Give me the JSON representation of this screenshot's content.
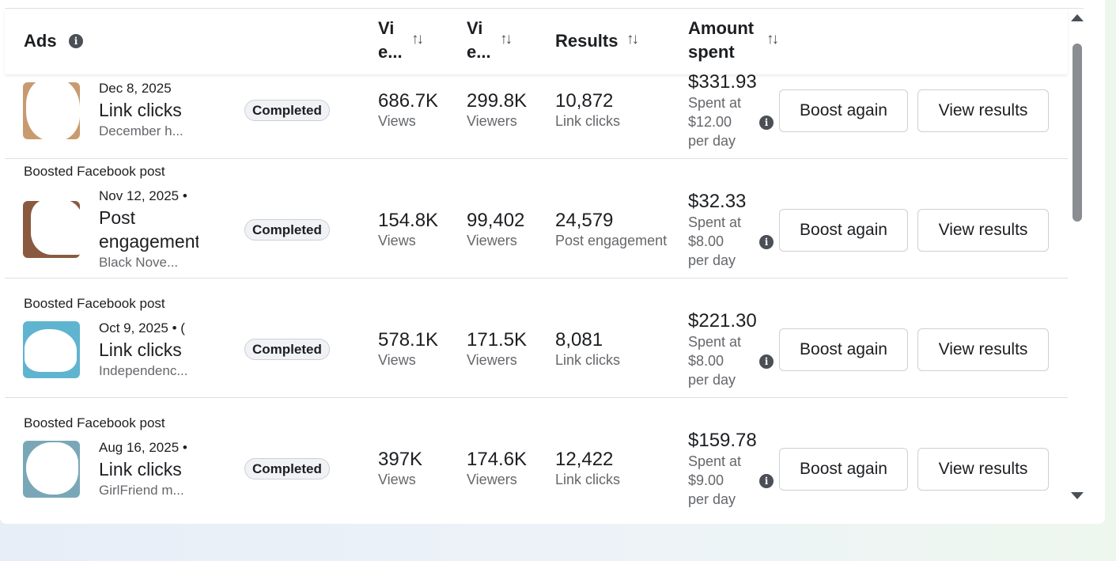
{
  "header": {
    "ads": "Ads",
    "views_col_line1": "Vi",
    "views_col_line2": "e...",
    "viewers_col_line1": "Vi",
    "viewers_col_line2": "e...",
    "results": "Results",
    "amount_line1": "Amount",
    "amount_line2": "spent",
    "sort_icon": "↑↓",
    "info_icon": "i"
  },
  "rows": [
    {
      "kicker": "",
      "date": "Dec 8, 2025",
      "title": "Link clicks",
      "subtitle": "December h...",
      "status": "Completed",
      "views": "686.7K",
      "views_label": "Views",
      "viewers": "299.8K",
      "viewers_label": "Viewers",
      "results": "10,872",
      "results_label": "Link clicks",
      "amount": "$331.93",
      "amount_l1": "Spent at",
      "amount_l2": "$12.00",
      "amount_l3": "per day",
      "boost": "Boost again",
      "view": "View results"
    },
    {
      "kicker": "Boosted Facebook post",
      "date": "Nov 12, 2025  •",
      "title": "Post engagement",
      "subtitle": "Black Nove...",
      "status": "Completed",
      "views": "154.8K",
      "views_label": "Views",
      "viewers": "99,402",
      "viewers_label": "Viewers",
      "results": "24,579",
      "results_label": "Post engagement",
      "amount": "$32.33",
      "amount_l1": "Spent at",
      "amount_l2": "$8.00",
      "amount_l3": "per day",
      "boost": "Boost again",
      "view": "View results"
    },
    {
      "kicker": "Boosted Facebook post",
      "date": "Oct 9, 2025  •  (",
      "title": "Link clicks",
      "subtitle": "Independenc...",
      "status": "Completed",
      "views": "578.1K",
      "views_label": "Views",
      "viewers": "171.5K",
      "viewers_label": "Viewers",
      "results": "8,081",
      "results_label": "Link clicks",
      "amount": "$221.30",
      "amount_l1": "Spent at",
      "amount_l2": "$8.00",
      "amount_l3": "per day",
      "boost": "Boost again",
      "view": "View results"
    },
    {
      "kicker": "Boosted Facebook post",
      "date": "Aug 16, 2025  •",
      "title": "Link clicks",
      "subtitle": "GirlFriend m...",
      "status": "Completed",
      "views": "397K",
      "views_label": "Views",
      "viewers": "174.6K",
      "viewers_label": "Viewers",
      "results": "12,422",
      "results_label": "Link clicks",
      "amount": "$159.78",
      "amount_l1": "Spent at",
      "amount_l2": "$9.00",
      "amount_l3": "per day",
      "boost": "Boost again",
      "view": "View results"
    }
  ]
}
